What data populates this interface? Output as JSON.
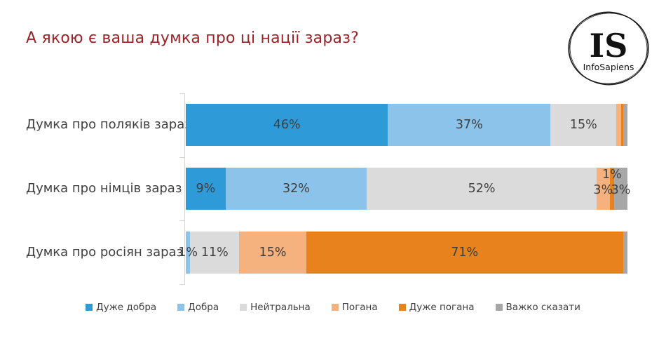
{
  "title": "А якою є ваша думка про ці нації зараз?",
  "logo": {
    "initials": "IS",
    "name": "InfoSapiens"
  },
  "chart_data": {
    "type": "bar",
    "orientation": "horizontal",
    "stacked": true,
    "title": "А якою є ваша думка про ці нації зараз?",
    "xlabel": "",
    "ylabel": "",
    "xlim": [
      0,
      100
    ],
    "grid": false,
    "legend_position": "bottom",
    "categories": [
      "Думка про поляків зараз",
      "Думка про німців зараз",
      "Думка про росіян зараз"
    ],
    "series": [
      {
        "name": "Дуже добра",
        "color": "#2E9AD8",
        "values": [
          46,
          9,
          0
        ]
      },
      {
        "name": "Добра",
        "color": "#8CC3EA",
        "values": [
          37,
          32,
          1
        ]
      },
      {
        "name": "Нейтральна",
        "color": "#DBDBDB",
        "values": [
          15,
          52,
          11
        ]
      },
      {
        "name": "Погана",
        "color": "#F5B27F",
        "values": [
          1,
          3,
          15
        ]
      },
      {
        "name": "Дуже погана",
        "color": "#E8821D",
        "values": [
          0.5,
          1,
          71
        ]
      },
      {
        "name": "Важко сказати",
        "color": "#A7A7A7",
        "values": [
          1,
          3,
          1
        ]
      }
    ],
    "data_labels": [
      [
        "46%",
        "37%",
        "15%",
        "",
        "",
        ""
      ],
      [
        "9%",
        "32%",
        "52%",
        "3%",
        "1%",
        "3%"
      ],
      [
        "",
        "1%",
        "11%",
        "15%",
        "71%",
        ""
      ]
    ],
    "label_dy": [
      [
        0,
        0,
        0,
        0,
        0,
        0
      ],
      [
        0,
        0,
        0,
        2,
        -20,
        2
      ],
      [
        0,
        0,
        0,
        0,
        0,
        0
      ]
    ]
  }
}
